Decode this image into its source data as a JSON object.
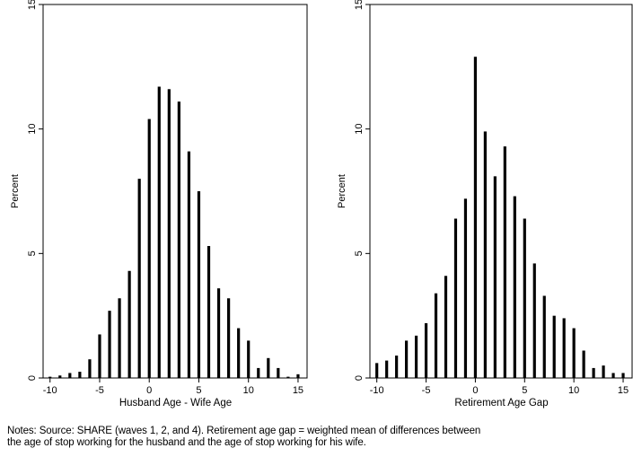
{
  "notes": {
    "line1": "Notes: Source: SHARE (waves 1, 2, and 4). Retirement age gap = weighted mean of differences between",
    "line2": "the age of stop working for the husband and the age of stop working for his wife."
  },
  "chart_data": [
    {
      "type": "bar",
      "xlabel": "Husband Age - Wife Age",
      "ylabel": "Percent",
      "xticks": [
        -10,
        -5,
        0,
        5,
        10,
        15
      ],
      "yticks": [
        0,
        5,
        10,
        15
      ],
      "xlim": [
        -10.7,
        16
      ],
      "ylim": [
        0,
        15
      ],
      "grid": false,
      "x": [
        -10,
        -9,
        -8,
        -7,
        -6,
        -5,
        -4,
        -3,
        -2,
        -1,
        0,
        1,
        2,
        3,
        4,
        5,
        6,
        7,
        8,
        9,
        10,
        11,
        12,
        13,
        14,
        15
      ],
      "values": [
        0.05,
        0.1,
        0.2,
        0.25,
        0.75,
        1.75,
        2.7,
        3.2,
        4.3,
        8.0,
        10.4,
        11.7,
        11.6,
        11.1,
        9.1,
        7.5,
        5.3,
        3.6,
        3.2,
        2.0,
        1.5,
        0.4,
        0.8,
        0.4,
        0.05,
        0.15
      ]
    },
    {
      "type": "bar",
      "xlabel": "Retirement Age Gap",
      "ylabel": "Percent",
      "xticks": [
        -10,
        -5,
        0,
        5,
        10,
        15
      ],
      "yticks": [
        0,
        5,
        10,
        15
      ],
      "xlim": [
        -10.7,
        16
      ],
      "ylim": [
        0,
        15
      ],
      "grid": false,
      "x": [
        -10,
        -9,
        -8,
        -7,
        -6,
        -5,
        -4,
        -3,
        -2,
        -1,
        0,
        1,
        2,
        3,
        4,
        5,
        6,
        7,
        8,
        9,
        10,
        11,
        12,
        13,
        14,
        15
      ],
      "values": [
        0.6,
        0.7,
        0.9,
        1.5,
        1.7,
        2.2,
        3.4,
        4.1,
        6.4,
        7.2,
        12.9,
        9.9,
        8.1,
        9.3,
        7.3,
        6.4,
        4.6,
        3.3,
        2.5,
        2.4,
        2.0,
        1.1,
        0.4,
        0.5,
        0.2,
        0.2
      ]
    }
  ]
}
